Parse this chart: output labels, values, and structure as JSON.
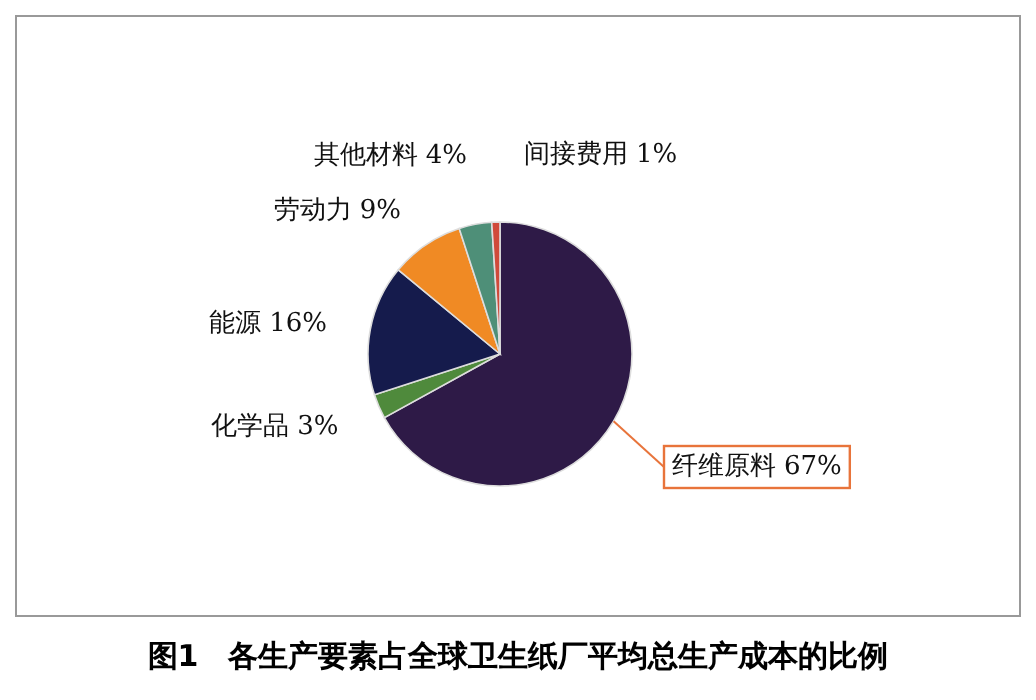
{
  "chart_data": {
    "type": "pie",
    "title": "图1　各生产要素占全球卫生纸厂平均总生产成本的比例",
    "categories": [
      "纤维原料",
      "化学品",
      "能源",
      "劳动力",
      "其他材料",
      "间接费用"
    ],
    "values": [
      67,
      3,
      16,
      9,
      4,
      1
    ],
    "value_labels": [
      "67%",
      "3%",
      "16%",
      "9%",
      "4%",
      "1%"
    ],
    "colors": [
      "#2e1a47",
      "#4f8a3c",
      "#151b4c",
      "#f08a24",
      "#4e8f78",
      "#d04a3a"
    ]
  }
}
